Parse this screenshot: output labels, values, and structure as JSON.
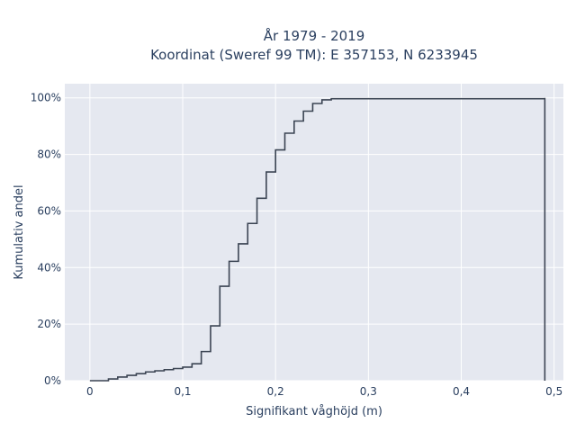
{
  "chart_data": {
    "type": "line",
    "subtype": "ecdf-step",
    "title_line1": "År 1979 - 2019",
    "title_line2": "Koordinat (Sweref 99 TM): E 357153, N 6233945",
    "xlabel": "Signifikant våghöjd (m)",
    "ylabel": "Kumulativ andel",
    "xlim": [
      -0.027,
      0.51
    ],
    "ylim": [
      0,
      1.05
    ],
    "x_ticks": [
      {
        "value": 0,
        "label": "0"
      },
      {
        "value": 0.1,
        "label": "0,1"
      },
      {
        "value": 0.2,
        "label": "0,2"
      },
      {
        "value": 0.3,
        "label": "0,3"
      },
      {
        "value": 0.4,
        "label": "0,4"
      },
      {
        "value": 0.5,
        "label": "0,5"
      }
    ],
    "y_ticks": [
      {
        "value": 0,
        "label": "0%"
      },
      {
        "value": 0.2,
        "label": "20%"
      },
      {
        "value": 0.4,
        "label": "40%"
      },
      {
        "value": 0.6,
        "label": "60%"
      },
      {
        "value": 0.8,
        "label": "80%"
      },
      {
        "value": 1.0,
        "label": "100%"
      }
    ],
    "grid": true,
    "series": [
      {
        "color": "#3b4453",
        "x": [
          0,
          0.02,
          0.03,
          0.04,
          0.05,
          0.06,
          0.07,
          0.08,
          0.09,
          0.1,
          0.11,
          0.12,
          0.13,
          0.14,
          0.15,
          0.16,
          0.17,
          0.18,
          0.19,
          0.2,
          0.21,
          0.22,
          0.23,
          0.24,
          0.25,
          0.26,
          0.49
        ],
        "y": [
          0.0,
          0.006,
          0.013,
          0.019,
          0.025,
          0.031,
          0.035,
          0.039,
          0.043,
          0.048,
          0.06,
          0.103,
          0.194,
          0.334,
          0.422,
          0.484,
          0.556,
          0.645,
          0.738,
          0.816,
          0.875,
          0.918,
          0.953,
          0.98,
          0.993,
          0.997,
          1.0
        ]
      }
    ]
  }
}
